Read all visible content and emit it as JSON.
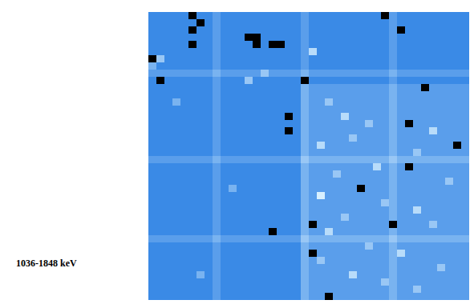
{
  "chart_data": {
    "type": "heatmap",
    "title": "1036-1848 keV",
    "tick_labels": false,
    "cells": [
      [
        3,
        3,
        3,
        3,
        3,
        0,
        3,
        3,
        4,
        3,
        3,
        3,
        3,
        3,
        3,
        3,
        3,
        3,
        3,
        4,
        3,
        3,
        3,
        3,
        3,
        3,
        3,
        3,
        3,
        0,
        4,
        3,
        3,
        3,
        3,
        3,
        3,
        3,
        3,
        3
      ],
      [
        3,
        3,
        3,
        3,
        3,
        3,
        0,
        3,
        4,
        3,
        3,
        3,
        3,
        3,
        3,
        3,
        3,
        3,
        3,
        4,
        3,
        3,
        3,
        3,
        3,
        3,
        3,
        3,
        3,
        3,
        4,
        3,
        3,
        3,
        3,
        3,
        3,
        3,
        3,
        3
      ],
      [
        3,
        3,
        3,
        3,
        3,
        0,
        3,
        3,
        4,
        3,
        3,
        3,
        3,
        3,
        3,
        3,
        3,
        3,
        3,
        4,
        3,
        3,
        3,
        3,
        3,
        3,
        3,
        3,
        3,
        3,
        4,
        0,
        3,
        3,
        3,
        3,
        3,
        3,
        3,
        3
      ],
      [
        3,
        3,
        3,
        3,
        3,
        3,
        3,
        3,
        4,
        3,
        3,
        3,
        0,
        0,
        3,
        3,
        3,
        3,
        3,
        4,
        3,
        3,
        3,
        3,
        3,
        3,
        3,
        3,
        3,
        3,
        4,
        3,
        3,
        3,
        3,
        3,
        3,
        3,
        3,
        3
      ],
      [
        3,
        3,
        3,
        3,
        3,
        0,
        3,
        3,
        4,
        3,
        3,
        3,
        3,
        0,
        3,
        0,
        0,
        3,
        3,
        4,
        3,
        3,
        3,
        3,
        3,
        3,
        3,
        3,
        3,
        3,
        4,
        3,
        3,
        3,
        3,
        3,
        3,
        3,
        3,
        3
      ],
      [
        3,
        3,
        3,
        3,
        3,
        3,
        3,
        3,
        4,
        3,
        3,
        3,
        3,
        3,
        3,
        3,
        3,
        3,
        3,
        4,
        7,
        3,
        3,
        3,
        3,
        3,
        3,
        3,
        3,
        3,
        4,
        3,
        3,
        3,
        3,
        3,
        3,
        3,
        3,
        3
      ],
      [
        0,
        6,
        3,
        3,
        3,
        3,
        3,
        3,
        4,
        3,
        3,
        3,
        3,
        3,
        3,
        3,
        3,
        3,
        3,
        4,
        3,
        3,
        3,
        3,
        3,
        3,
        3,
        3,
        3,
        3,
        4,
        3,
        3,
        3,
        3,
        3,
        3,
        3,
        3,
        3
      ],
      [
        5,
        3,
        3,
        3,
        3,
        3,
        3,
        3,
        4,
        3,
        3,
        3,
        3,
        3,
        3,
        3,
        3,
        3,
        3,
        4,
        3,
        3,
        3,
        3,
        3,
        3,
        3,
        3,
        3,
        3,
        4,
        3,
        3,
        3,
        3,
        3,
        3,
        3,
        3,
        3
      ],
      [
        4,
        4,
        4,
        4,
        4,
        4,
        4,
        4,
        5,
        4,
        4,
        4,
        4,
        4,
        6,
        4,
        4,
        4,
        4,
        5,
        4,
        4,
        4,
        4,
        4,
        4,
        4,
        4,
        4,
        4,
        5,
        4,
        4,
        4,
        4,
        4,
        4,
        4,
        4,
        4
      ],
      [
        3,
        0,
        3,
        3,
        3,
        3,
        3,
        3,
        4,
        3,
        3,
        3,
        6,
        3,
        3,
        3,
        3,
        3,
        3,
        0,
        3,
        3,
        3,
        3,
        3,
        3,
        3,
        3,
        3,
        3,
        4,
        3,
        3,
        3,
        3,
        3,
        3,
        3,
        3,
        3
      ],
      [
        3,
        3,
        3,
        3,
        3,
        3,
        3,
        3,
        4,
        3,
        3,
        3,
        3,
        3,
        3,
        3,
        3,
        3,
        3,
        5,
        4,
        4,
        4,
        4,
        4,
        4,
        4,
        4,
        4,
        4,
        5,
        4,
        4,
        4,
        0,
        4,
        4,
        4,
        4,
        4
      ],
      [
        3,
        3,
        3,
        3,
        3,
        3,
        3,
        3,
        4,
        3,
        3,
        3,
        3,
        3,
        3,
        3,
        3,
        3,
        3,
        5,
        4,
        4,
        4,
        4,
        4,
        4,
        4,
        4,
        4,
        4,
        5,
        4,
        4,
        4,
        4,
        4,
        4,
        4,
        4,
        4
      ],
      [
        3,
        3,
        3,
        5,
        3,
        3,
        3,
        3,
        4,
        3,
        3,
        3,
        3,
        3,
        3,
        3,
        3,
        3,
        3,
        5,
        4,
        4,
        6,
        4,
        4,
        4,
        4,
        4,
        4,
        4,
        5,
        4,
        4,
        4,
        4,
        4,
        4,
        4,
        4,
        4
      ],
      [
        3,
        3,
        3,
        3,
        3,
        3,
        3,
        3,
        4,
        3,
        3,
        3,
        3,
        3,
        3,
        3,
        3,
        3,
        3,
        5,
        4,
        4,
        4,
        4,
        4,
        4,
        4,
        4,
        4,
        4,
        5,
        4,
        4,
        4,
        4,
        4,
        4,
        4,
        4,
        4
      ],
      [
        3,
        3,
        3,
        3,
        3,
        3,
        3,
        3,
        4,
        3,
        3,
        3,
        3,
        3,
        3,
        3,
        3,
        0,
        3,
        5,
        4,
        4,
        4,
        4,
        7,
        4,
        4,
        4,
        4,
        4,
        5,
        4,
        4,
        4,
        4,
        4,
        4,
        4,
        4,
        4
      ],
      [
        3,
        3,
        3,
        3,
        3,
        3,
        3,
        3,
        4,
        3,
        3,
        3,
        3,
        3,
        3,
        3,
        3,
        3,
        3,
        5,
        4,
        4,
        4,
        4,
        4,
        4,
        4,
        6,
        4,
        4,
        5,
        4,
        0,
        4,
        4,
        4,
        4,
        4,
        4,
        4
      ],
      [
        3,
        3,
        3,
        3,
        3,
        3,
        3,
        3,
        4,
        3,
        3,
        3,
        3,
        3,
        3,
        3,
        3,
        0,
        3,
        5,
        4,
        4,
        4,
        4,
        4,
        4,
        4,
        4,
        4,
        4,
        5,
        4,
        4,
        4,
        4,
        7,
        4,
        4,
        4,
        4
      ],
      [
        3,
        3,
        3,
        3,
        3,
        3,
        3,
        3,
        4,
        3,
        3,
        3,
        3,
        3,
        3,
        3,
        3,
        3,
        3,
        5,
        4,
        4,
        4,
        4,
        4,
        6,
        4,
        4,
        4,
        4,
        5,
        4,
        4,
        4,
        4,
        4,
        4,
        4,
        4,
        4
      ],
      [
        3,
        3,
        3,
        3,
        3,
        3,
        3,
        3,
        4,
        3,
        3,
        3,
        3,
        3,
        3,
        3,
        3,
        3,
        3,
        5,
        4,
        7,
        4,
        4,
        4,
        4,
        4,
        4,
        4,
        4,
        5,
        4,
        4,
        4,
        4,
        4,
        4,
        4,
        0,
        4
      ],
      [
        3,
        3,
        3,
        3,
        3,
        3,
        3,
        3,
        4,
        3,
        3,
        3,
        3,
        3,
        3,
        3,
        3,
        3,
        3,
        5,
        4,
        4,
        4,
        4,
        4,
        4,
        4,
        4,
        4,
        4,
        5,
        4,
        4,
        6,
        4,
        4,
        4,
        4,
        4,
        4
      ],
      [
        4,
        4,
        4,
        4,
        4,
        4,
        4,
        4,
        5,
        4,
        4,
        4,
        4,
        4,
        4,
        4,
        4,
        4,
        4,
        6,
        5,
        5,
        5,
        5,
        5,
        5,
        5,
        5,
        5,
        5,
        6,
        5,
        5,
        5,
        5,
        5,
        5,
        5,
        5,
        5
      ],
      [
        3,
        3,
        3,
        3,
        3,
        3,
        3,
        3,
        4,
        3,
        3,
        3,
        3,
        3,
        3,
        3,
        3,
        3,
        3,
        5,
        4,
        4,
        4,
        4,
        4,
        4,
        4,
        4,
        7,
        4,
        5,
        4,
        0,
        4,
        4,
        4,
        4,
        4,
        4,
        4
      ],
      [
        3,
        3,
        3,
        3,
        3,
        3,
        3,
        3,
        4,
        3,
        3,
        3,
        3,
        3,
        3,
        3,
        3,
        3,
        3,
        5,
        4,
        4,
        4,
        6,
        4,
        4,
        4,
        4,
        4,
        4,
        5,
        4,
        4,
        4,
        4,
        4,
        4,
        4,
        4,
        4
      ],
      [
        3,
        3,
        3,
        3,
        3,
        3,
        3,
        3,
        4,
        3,
        3,
        3,
        3,
        3,
        3,
        3,
        3,
        3,
        3,
        5,
        4,
        4,
        4,
        4,
        4,
        4,
        4,
        4,
        4,
        4,
        5,
        4,
        4,
        4,
        4,
        4,
        4,
        6,
        4,
        4
      ],
      [
        3,
        3,
        3,
        3,
        3,
        3,
        3,
        3,
        4,
        3,
        5,
        3,
        3,
        3,
        3,
        3,
        3,
        3,
        3,
        5,
        4,
        4,
        4,
        4,
        4,
        4,
        0,
        4,
        4,
        4,
        5,
        4,
        4,
        4,
        4,
        4,
        4,
        4,
        4,
        4
      ],
      [
        3,
        3,
        3,
        3,
        3,
        3,
        3,
        3,
        4,
        3,
        3,
        3,
        3,
        3,
        3,
        3,
        3,
        3,
        3,
        5,
        4,
        8,
        4,
        4,
        4,
        4,
        4,
        4,
        4,
        4,
        5,
        4,
        4,
        4,
        4,
        4,
        4,
        4,
        4,
        4
      ],
      [
        3,
        3,
        3,
        3,
        3,
        3,
        3,
        3,
        4,
        3,
        3,
        3,
        3,
        3,
        3,
        3,
        3,
        3,
        3,
        5,
        4,
        4,
        4,
        4,
        4,
        4,
        4,
        4,
        4,
        6,
        5,
        4,
        4,
        4,
        4,
        4,
        4,
        4,
        4,
        4
      ],
      [
        3,
        3,
        3,
        3,
        3,
        3,
        3,
        3,
        4,
        3,
        3,
        3,
        3,
        3,
        3,
        3,
        3,
        3,
        3,
        5,
        4,
        4,
        4,
        4,
        4,
        4,
        4,
        4,
        4,
        4,
        5,
        4,
        4,
        7,
        4,
        4,
        4,
        4,
        4,
        4
      ],
      [
        3,
        3,
        3,
        3,
        3,
        3,
        3,
        3,
        4,
        3,
        3,
        3,
        3,
        3,
        3,
        3,
        3,
        3,
        3,
        5,
        4,
        4,
        4,
        4,
        6,
        4,
        4,
        4,
        4,
        4,
        5,
        4,
        4,
        4,
        4,
        4,
        4,
        4,
        4,
        4
      ],
      [
        3,
        3,
        3,
        3,
        3,
        3,
        3,
        3,
        4,
        3,
        3,
        3,
        3,
        3,
        3,
        3,
        3,
        3,
        3,
        5,
        0,
        4,
        4,
        4,
        4,
        4,
        4,
        4,
        4,
        4,
        0,
        4,
        4,
        4,
        4,
        6,
        4,
        4,
        4,
        4
      ],
      [
        3,
        3,
        3,
        3,
        3,
        3,
        3,
        3,
        4,
        3,
        3,
        3,
        3,
        3,
        3,
        0,
        3,
        3,
        3,
        5,
        4,
        4,
        7,
        4,
        4,
        4,
        4,
        4,
        4,
        4,
        5,
        4,
        4,
        4,
        4,
        4,
        4,
        4,
        4,
        4
      ],
      [
        4,
        4,
        4,
        4,
        4,
        4,
        4,
        4,
        5,
        4,
        4,
        4,
        4,
        4,
        4,
        4,
        4,
        4,
        4,
        6,
        5,
        5,
        5,
        5,
        5,
        5,
        5,
        5,
        5,
        5,
        6,
        5,
        5,
        5,
        5,
        5,
        5,
        5,
        5,
        5
      ],
      [
        3,
        3,
        3,
        3,
        3,
        3,
        3,
        3,
        4,
        3,
        3,
        3,
        3,
        3,
        3,
        3,
        3,
        3,
        3,
        5,
        4,
        4,
        4,
        4,
        4,
        4,
        4,
        6,
        4,
        4,
        5,
        4,
        4,
        4,
        4,
        4,
        4,
        4,
        4,
        4
      ],
      [
        3,
        3,
        3,
        3,
        3,
        3,
        3,
        3,
        4,
        3,
        3,
        3,
        3,
        3,
        3,
        3,
        3,
        3,
        3,
        5,
        0,
        4,
        4,
        4,
        4,
        4,
        4,
        4,
        4,
        4,
        5,
        7,
        4,
        4,
        4,
        4,
        4,
        4,
        4,
        4
      ],
      [
        3,
        3,
        3,
        3,
        3,
        3,
        3,
        3,
        4,
        3,
        3,
        3,
        3,
        3,
        3,
        3,
        3,
        3,
        3,
        5,
        4,
        6,
        4,
        4,
        4,
        4,
        4,
        4,
        4,
        4,
        5,
        4,
        4,
        4,
        4,
        4,
        4,
        4,
        4,
        4
      ],
      [
        3,
        3,
        3,
        3,
        3,
        3,
        3,
        3,
        4,
        3,
        3,
        3,
        3,
        3,
        3,
        3,
        3,
        3,
        3,
        5,
        4,
        4,
        4,
        4,
        4,
        4,
        4,
        4,
        4,
        4,
        5,
        4,
        4,
        4,
        4,
        4,
        6,
        4,
        4,
        4
      ],
      [
        3,
        3,
        3,
        3,
        3,
        3,
        5,
        3,
        4,
        3,
        3,
        3,
        3,
        3,
        3,
        3,
        3,
        3,
        3,
        5,
        4,
        4,
        4,
        4,
        4,
        7,
        4,
        4,
        4,
        4,
        5,
        4,
        4,
        4,
        4,
        4,
        4,
        4,
        4,
        4
      ],
      [
        3,
        3,
        3,
        3,
        3,
        3,
        3,
        3,
        4,
        3,
        3,
        3,
        3,
        3,
        3,
        3,
        3,
        3,
        3,
        5,
        4,
        4,
        4,
        4,
        4,
        4,
        4,
        4,
        4,
        6,
        5,
        4,
        4,
        4,
        4,
        4,
        4,
        4,
        4,
        4
      ],
      [
        3,
        3,
        3,
        3,
        3,
        3,
        3,
        3,
        4,
        3,
        3,
        3,
        3,
        3,
        3,
        3,
        3,
        3,
        3,
        5,
        4,
        4,
        4,
        4,
        4,
        4,
        4,
        4,
        4,
        4,
        5,
        4,
        4,
        6,
        4,
        4,
        4,
        4,
        4,
        4
      ],
      [
        3,
        3,
        3,
        3,
        3,
        3,
        3,
        3,
        4,
        3,
        3,
        3,
        3,
        3,
        3,
        3,
        3,
        3,
        3,
        5,
        4,
        4,
        0,
        4,
        4,
        4,
        4,
        4,
        4,
        4,
        5,
        4,
        4,
        4,
        4,
        4,
        4,
        4,
        4,
        4
      ]
    ]
  }
}
